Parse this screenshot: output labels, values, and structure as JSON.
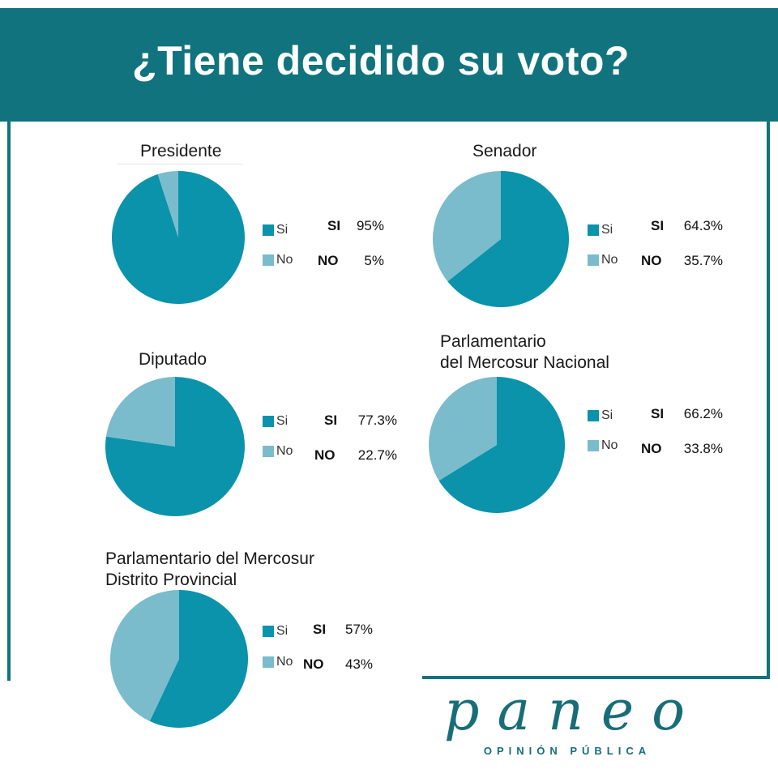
{
  "header": {
    "title": "¿Tiene decidido su voto?"
  },
  "colors": {
    "si": "#0a93ab",
    "no": "#7abccc",
    "brand": "#10737d"
  },
  "legend": {
    "si_label": "Si",
    "no_label": "No"
  },
  "value_keys": {
    "si": "SI",
    "no": "NO"
  },
  "chart_data": [
    {
      "type": "pie",
      "title": "Presidente",
      "categories": [
        "Si",
        "No"
      ],
      "values": [
        95,
        5
      ],
      "value_labels": [
        "95%",
        "5%"
      ]
    },
    {
      "type": "pie",
      "title": "Senador",
      "categories": [
        "Si",
        "No"
      ],
      "values": [
        64.3,
        35.7
      ],
      "value_labels": [
        "64.3%",
        "35.7%"
      ]
    },
    {
      "type": "pie",
      "title": "Diputado",
      "categories": [
        "Si",
        "No"
      ],
      "values": [
        77.3,
        22.7
      ],
      "value_labels": [
        "77.3%",
        "22.7%"
      ]
    },
    {
      "type": "pie",
      "title": "Parlamentario\ndel Mercosur Nacional",
      "categories": [
        "Si",
        "No"
      ],
      "values": [
        66.2,
        33.8
      ],
      "value_labels": [
        "66.2%",
        "33.8%"
      ]
    },
    {
      "type": "pie",
      "title": "Parlamentario del Mercosur\nDistrito Provincial",
      "categories": [
        "Si",
        "No"
      ],
      "values": [
        57,
        43
      ],
      "value_labels": [
        "57%",
        "43%"
      ]
    }
  ],
  "logo": {
    "name": "paneo",
    "tagline": "OPINIÓN PÚBLICA"
  }
}
